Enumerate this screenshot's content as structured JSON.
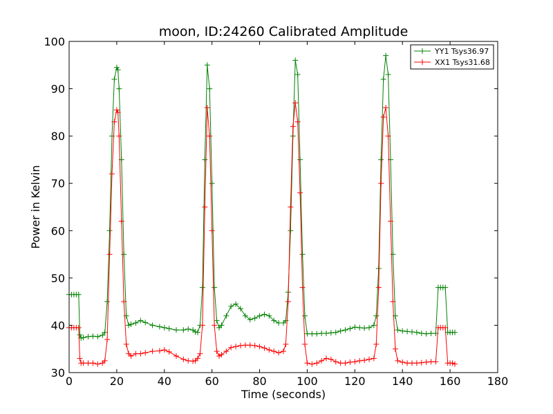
{
  "chart_data": {
    "type": "line",
    "title": "moon, ID:24260 Calibrated Amplitude",
    "xlabel": "Time (seconds)",
    "ylabel": "Power in Kelvin",
    "xlim": [
      0,
      180
    ],
    "ylim": [
      30,
      100
    ],
    "xticks": [
      0,
      20,
      40,
      60,
      80,
      100,
      120,
      140,
      160,
      180
    ],
    "yticks": [
      30,
      40,
      50,
      60,
      70,
      80,
      90,
      100
    ],
    "grid": false,
    "legend_position": "top-right",
    "marker": "+",
    "series": [
      {
        "name": "YY1 Tsys36.97",
        "color": "#008000",
        "x": [
          0,
          1,
          2,
          3,
          4,
          4.5,
          5,
          6,
          8,
          10,
          12,
          14,
          15,
          16,
          17,
          18,
          19,
          20,
          20.5,
          21,
          22,
          23,
          24,
          25,
          26,
          28,
          30,
          32,
          35,
          38,
          40,
          42,
          45,
          48,
          50,
          52,
          53,
          54,
          55,
          56,
          57,
          58,
          59,
          60,
          61,
          62,
          63,
          64,
          66,
          68,
          70,
          72,
          74,
          76,
          78,
          80,
          82,
          84,
          86,
          88,
          90,
          91,
          92,
          93,
          94,
          95,
          96,
          97,
          98,
          99,
          100,
          102,
          104,
          106,
          108,
          110,
          112,
          114,
          116,
          118,
          120,
          122,
          124,
          126,
          128,
          129,
          130,
          131,
          132,
          133,
          134,
          135,
          136,
          137,
          138,
          140,
          142,
          144,
          146,
          148,
          150,
          152,
          154,
          155,
          156,
          157,
          158,
          159,
          160,
          161,
          162
        ],
        "y": [
          46.5,
          46.5,
          46.5,
          46.5,
          46.5,
          38,
          37.3,
          37.4,
          37.6,
          37.7,
          37.6,
          37.9,
          38.5,
          45,
          60,
          80,
          92,
          94.5,
          94,
          90,
          75,
          55,
          42,
          40,
          40.2,
          40.5,
          41,
          40.6,
          40,
          39.7,
          39.5,
          39.3,
          39,
          39,
          39.2,
          39,
          38.6,
          38.5,
          40,
          48,
          75,
          95,
          90,
          70,
          48,
          41,
          39.5,
          40,
          42,
          44,
          44.5,
          43.5,
          42,
          41.2,
          41.5,
          42,
          42.3,
          42,
          41,
          40.5,
          40.5,
          41,
          47,
          60,
          80,
          96,
          93,
          75,
          55,
          42,
          38.2,
          38.2,
          38.2,
          38.3,
          38.3,
          38.4,
          38.5,
          38.8,
          39,
          39.3,
          39.6,
          39.5,
          39.4,
          39.5,
          40,
          42,
          52,
          75,
          92,
          97,
          93,
          75,
          55,
          42,
          39,
          38.8,
          38.7,
          38.6,
          38.5,
          38.3,
          38.2,
          38.3,
          38.3,
          48,
          48,
          48,
          48,
          38.5,
          38.5,
          38.5,
          38.5
        ]
      },
      {
        "name": "XX1 Tsys31.68",
        "color": "#ff0000",
        "x": [
          0,
          1,
          2,
          3,
          4,
          4.5,
          5,
          6,
          8,
          10,
          12,
          14,
          15,
          16,
          17,
          18,
          19,
          20,
          20.5,
          21,
          22,
          23,
          24,
          25,
          26,
          28,
          30,
          32,
          35,
          38,
          40,
          42,
          45,
          48,
          50,
          52,
          53,
          54,
          55,
          56,
          57,
          58,
          59,
          60,
          61,
          62,
          63,
          64,
          66,
          68,
          70,
          72,
          74,
          76,
          78,
          80,
          82,
          84,
          86,
          88,
          90,
          91,
          92,
          93,
          94,
          95,
          96,
          97,
          98,
          99,
          100,
          102,
          104,
          106,
          108,
          110,
          112,
          114,
          116,
          118,
          120,
          122,
          124,
          126,
          128,
          129,
          130,
          131,
          132,
          133,
          134,
          135,
          136,
          137,
          138,
          140,
          142,
          144,
          146,
          148,
          150,
          152,
          154,
          155,
          156,
          157,
          158,
          159,
          160,
          161,
          162
        ],
        "y": [
          39.5,
          39.5,
          39.5,
          39.5,
          39.5,
          33,
          32,
          32,
          32,
          32,
          31.8,
          32,
          32.5,
          37,
          55,
          72,
          83,
          85.5,
          85,
          80,
          62,
          45,
          36,
          34,
          33.5,
          34,
          34,
          34.2,
          34.5,
          34.6,
          34.8,
          34.4,
          33.5,
          32.8,
          32.5,
          32.4,
          32.5,
          33,
          34,
          40,
          65,
          86,
          80,
          60,
          40,
          34.5,
          33.5,
          33.8,
          34.5,
          35.3,
          35.5,
          35.7,
          35.8,
          35.8,
          35.7,
          35.5,
          35.2,
          34.8,
          34.5,
          34.2,
          34.5,
          36,
          45,
          65,
          82,
          87,
          83,
          68,
          48,
          36,
          32,
          31.8,
          32,
          32.5,
          33,
          32.8,
          32.3,
          32,
          32,
          32.2,
          32.3,
          32.5,
          32.6,
          32.8,
          33,
          36,
          48,
          70,
          84,
          86,
          80,
          62,
          45,
          35,
          32.5,
          32.2,
          32,
          32,
          32,
          32.1,
          32.2,
          32.3,
          32.3,
          39.5,
          39.5,
          39.5,
          39.5,
          32,
          32,
          32,
          31.8
        ]
      }
    ]
  }
}
